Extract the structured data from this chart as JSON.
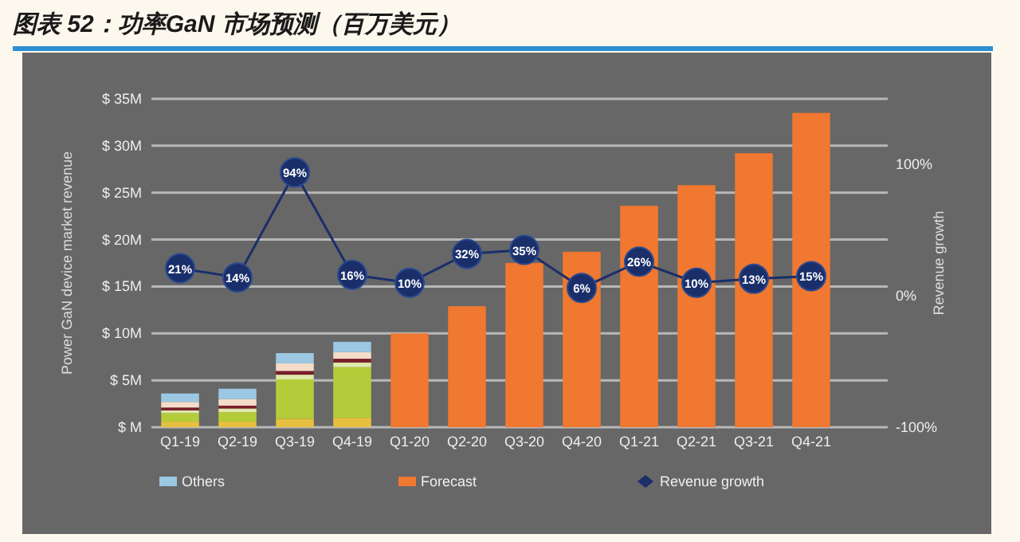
{
  "chart_data": {
    "type": "bar",
    "title": "图表 52：功率GaN 市场预测（百万美元）",
    "categories": [
      "Q1-19",
      "Q2-19",
      "Q3-19",
      "Q4-19",
      "Q1-20",
      "Q2-20",
      "Q3-20",
      "Q4-20",
      "Q1-21",
      "Q2-21",
      "Q3-21",
      "Q4-21"
    ],
    "stacked": true,
    "series": [
      {
        "color": "#e8c040",
        "values": [
          0.6,
          0.6,
          0.9,
          1.0,
          null,
          null,
          null,
          null,
          null,
          null,
          null,
          null
        ]
      },
      {
        "color": "#b5cc3a",
        "values": [
          0.9,
          1.0,
          4.2,
          5.4,
          null,
          null,
          null,
          null,
          null,
          null,
          null,
          null
        ]
      },
      {
        "color": "#dfe8a8",
        "values": [
          0.3,
          0.4,
          0.5,
          0.5,
          null,
          null,
          null,
          null,
          null,
          null,
          null,
          null
        ]
      },
      {
        "color": "#7a1e2a",
        "values": [
          0.3,
          0.3,
          0.4,
          0.4,
          null,
          null,
          null,
          null,
          null,
          null,
          null,
          null
        ]
      },
      {
        "color": "#f5dcc8",
        "values": [
          0.6,
          0.7,
          0.8,
          0.7,
          null,
          null,
          null,
          null,
          null,
          null,
          null,
          null
        ]
      },
      {
        "name": "Others",
        "color": "#9cc8e4",
        "values": [
          0.9,
          1.1,
          1.1,
          1.1,
          null,
          null,
          null,
          null,
          null,
          null,
          null,
          null
        ]
      },
      {
        "name": "Forecast",
        "color": "#f07830",
        "values": [
          null,
          null,
          null,
          null,
          10.0,
          12.9,
          17.5,
          18.7,
          23.6,
          25.8,
          29.2,
          33.5
        ]
      },
      {
        "name": "Revenue growth",
        "type": "line",
        "axis": "y2",
        "marker": "circle",
        "color": "#1a2e6a",
        "values": [
          21,
          14,
          94,
          16,
          10,
          32,
          35,
          6,
          26,
          10,
          13,
          15
        ],
        "value_labels": [
          "21%",
          "14%",
          "94%",
          "16%",
          "10%",
          "32%",
          "35%",
          "6%",
          "26%",
          "10%",
          "13%",
          "15%"
        ]
      }
    ],
    "ylabel": "Power GaN device market revenue",
    "y2label": "Revenue growth",
    "ylim": [
      0,
      35
    ],
    "yticks": [
      {
        "value": 0,
        "label": "$ M"
      },
      {
        "value": 5,
        "label": "$ 5M"
      },
      {
        "value": 10,
        "label": "$ 10M"
      },
      {
        "value": 15,
        "label": "$ 15M"
      },
      {
        "value": 20,
        "label": "$ 20M"
      },
      {
        "value": 25,
        "label": "$ 25M"
      },
      {
        "value": 30,
        "label": "$ 30M"
      },
      {
        "value": 35,
        "label": "$ 35M"
      }
    ],
    "y2lim": [
      -100,
      150
    ],
    "y2ticks": [
      {
        "value": -100,
        "label": "-100%"
      },
      {
        "value": 0,
        "label": "0%"
      },
      {
        "value": 100,
        "label": "100%"
      }
    ],
    "grid": "y",
    "legend": "bottom"
  }
}
